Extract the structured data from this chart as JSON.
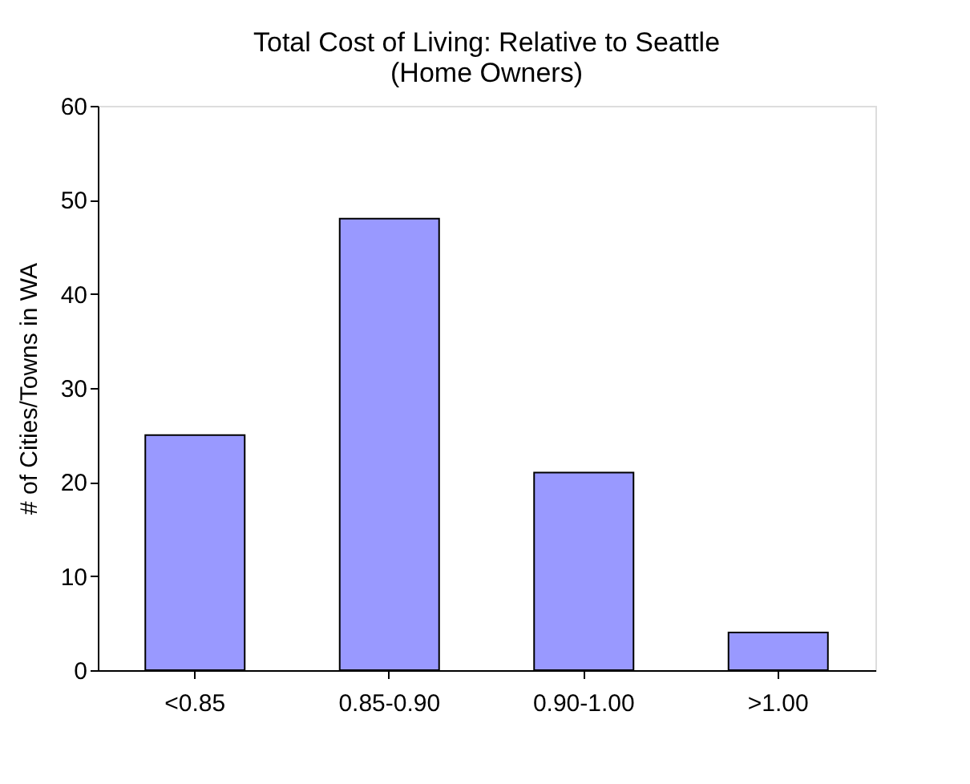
{
  "chart_data": {
    "type": "bar",
    "title": [
      "Total Cost of Living: Relative to Seattle",
      "(Home Owners)"
    ],
    "ylabel": "# of Cities/Towns in WA",
    "categories": [
      "<0.85",
      "0.85-0.90",
      "0.90-1.00",
      ">1.00"
    ],
    "values": [
      25,
      48,
      21,
      4
    ],
    "color": "#9999ff",
    "ylim": [
      0,
      60
    ],
    "yticks": [
      0,
      10,
      20,
      30,
      40,
      50,
      60
    ],
    "grid": false
  }
}
